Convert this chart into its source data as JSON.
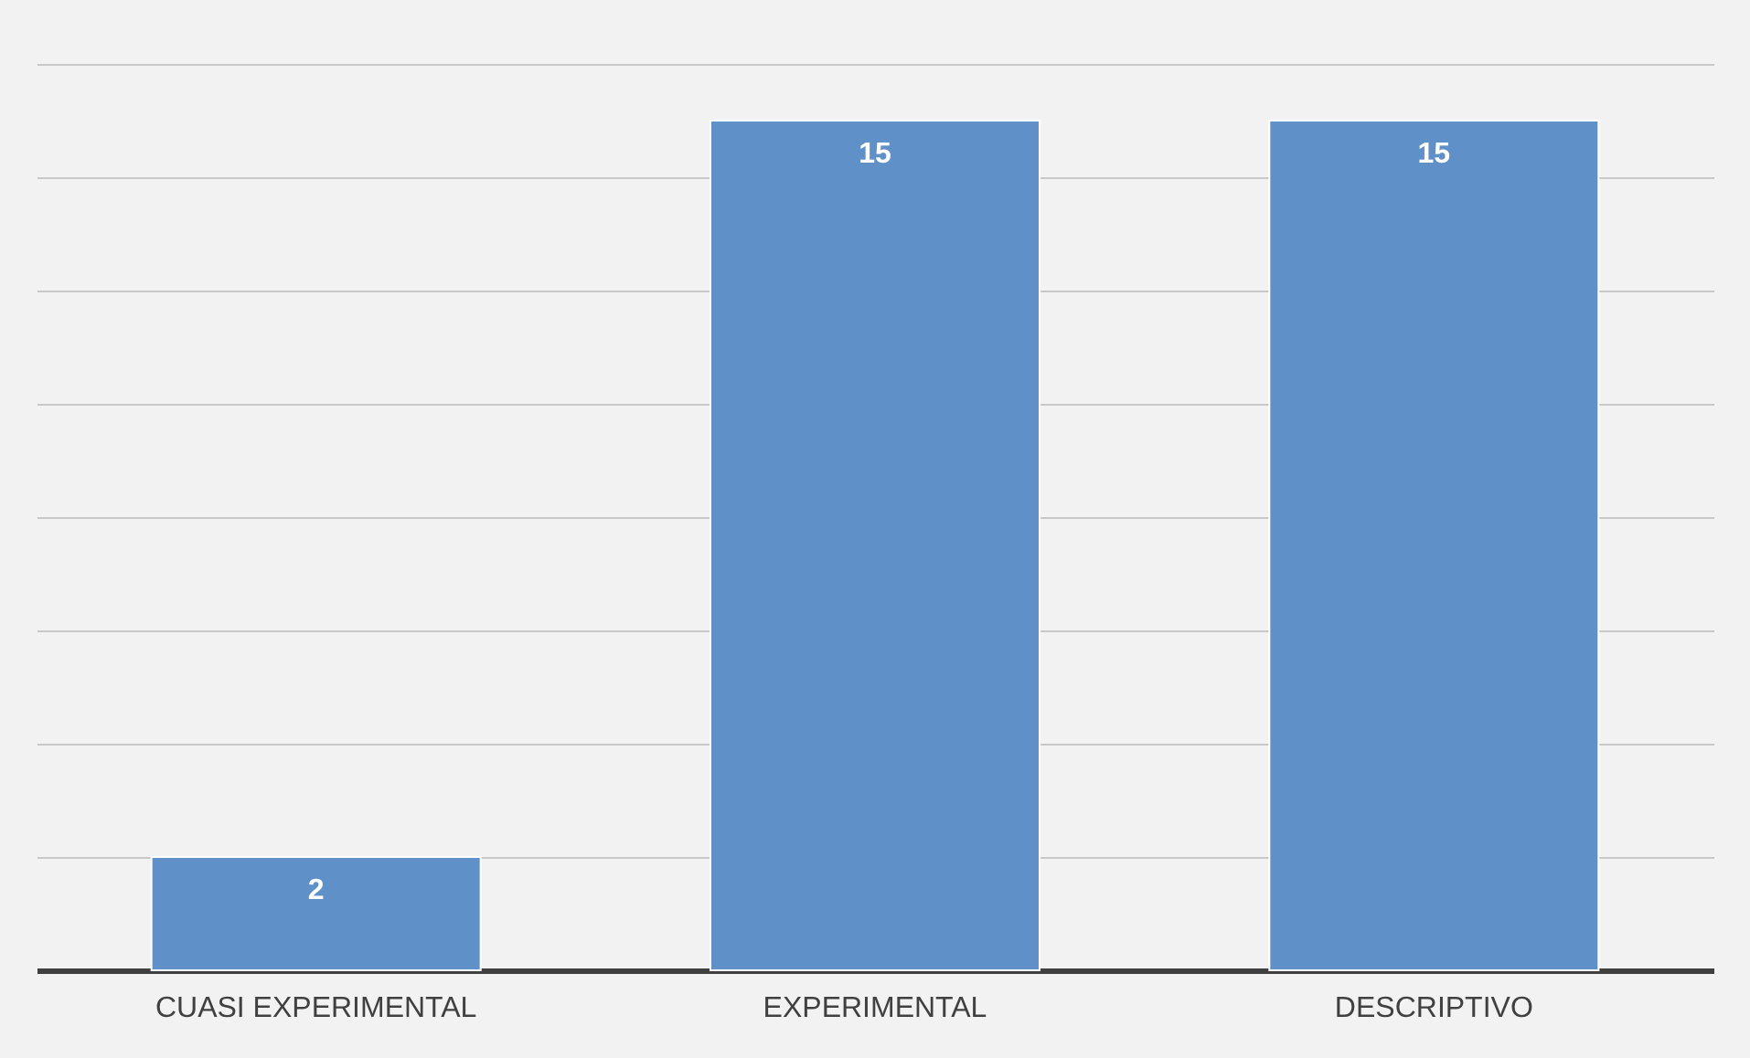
{
  "chart_data": {
    "type": "bar",
    "categories": [
      "CUASI EXPERIMENTAL",
      "EXPERIMENTAL",
      "DESCRIPTIVO"
    ],
    "values": [
      2,
      15,
      15
    ],
    "color": "#5f90c8",
    "data_labels": true,
    "ylim": [
      0,
      16
    ],
    "yticks": [
      {
        "value": 0,
        "label": null
      },
      {
        "value": 2,
        "label": null
      },
      {
        "value": 4,
        "label": null
      },
      {
        "value": 6,
        "label": null
      },
      {
        "value": 8,
        "label": null
      },
      {
        "value": 10,
        "label": null
      },
      {
        "value": 12,
        "label": null
      },
      {
        "value": 14,
        "label": null
      },
      {
        "value": 16,
        "label": null
      }
    ],
    "grid": "y",
    "tick_labels": "x"
  }
}
